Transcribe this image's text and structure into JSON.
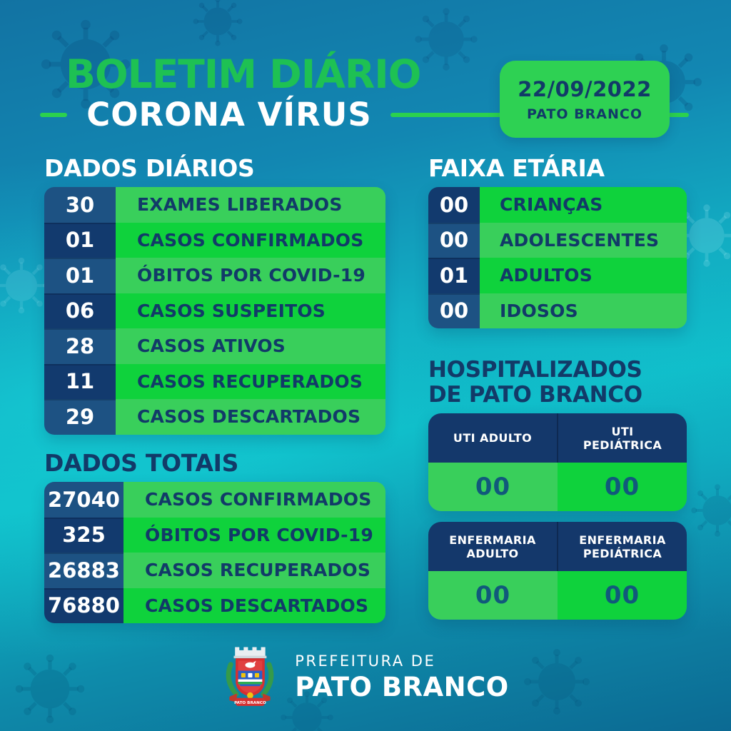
{
  "header": {
    "title": "BOLETIM DIÁRIO",
    "subtitle": "CORONA VÍRUS",
    "badge": {
      "date": "22/09/2022",
      "city": "PATO BRANCO"
    }
  },
  "daily": {
    "heading": "DADOS DIÁRIOS",
    "rows": [
      {
        "value": "30",
        "label": "EXAMES LIBERADOS"
      },
      {
        "value": "01",
        "label": "CASOS CONFIRMADOS"
      },
      {
        "value": "01",
        "label": "ÓBITOS POR COVID-19"
      },
      {
        "value": "06",
        "label": "CASOS SUSPEITOS"
      },
      {
        "value": "28",
        "label": "CASOS ATIVOS"
      },
      {
        "value": "11",
        "label": "CASOS RECUPERADOS"
      },
      {
        "value": "29",
        "label": "CASOS DESCARTADOS"
      }
    ]
  },
  "age_groups": {
    "heading": "FAIXA ETÁRIA",
    "rows": [
      {
        "value": "00",
        "label": "CRIANÇAS"
      },
      {
        "value": "00",
        "label": "ADOLESCENTES"
      },
      {
        "value": "01",
        "label": "ADULTOS"
      },
      {
        "value": "00",
        "label": "IDOSOS"
      }
    ]
  },
  "totals": {
    "heading": "DADOS TOTAIS",
    "rows": [
      {
        "value": "27040",
        "label": "CASOS CONFIRMADOS"
      },
      {
        "value": "325",
        "label": "ÓBITOS POR COVID-19"
      },
      {
        "value": "26883",
        "label": "CASOS RECUPERADOS"
      },
      {
        "value": "76880",
        "label": "CASOS DESCARTADOS"
      }
    ]
  },
  "hospitalized": {
    "heading_line1": "HOSPITALIZADOS",
    "heading_line2": "DE PATO BRANCO",
    "cards": [
      {
        "columns": [
          {
            "header": "UTI ADULTO",
            "value": "00"
          },
          {
            "header": "UTI PEDIÁTRICA",
            "value": "00"
          }
        ]
      },
      {
        "columns": [
          {
            "header": "ENFERMARIA ADULTO",
            "value": "00"
          },
          {
            "header": "ENFERMARIA PEDIÁTRICA",
            "value": "00"
          }
        ]
      }
    ]
  },
  "footer": {
    "org": "PREFEITURA DE",
    "city": "PATO BRANCO"
  },
  "icons": {
    "logo": "pato-branco-coat-of-arms",
    "watermark": "coronavirus-icon"
  },
  "colors": {
    "vivid_green": "#0fd23c",
    "light_green": "#39cf5b",
    "badge_green": "#2ed153",
    "title_green": "#1ec153",
    "navy_dark": "#123a6e",
    "navy_light": "#1d5283",
    "navy_text": "#123a68",
    "value_teal": "#11597b",
    "background_blue": "#1273a3",
    "background_cyan": "#10bdc9"
  }
}
